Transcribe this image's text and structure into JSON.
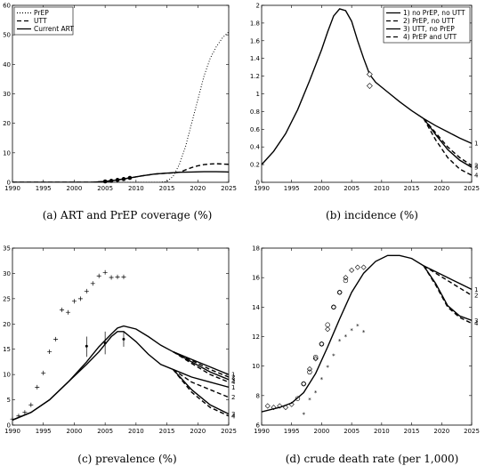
{
  "captions": {
    "a": "(a)  ART and PrEP coverage (%)",
    "b": "(b)  incidence (%)",
    "c": "(c)  prevalence (%)",
    "d": "(d)  crude death rate (per 1,000)"
  },
  "chart_data": [
    {
      "id": "a",
      "type": "line",
      "xlim": [
        1990,
        2025
      ],
      "ylim": [
        0,
        60
      ],
      "xticks": [
        1990,
        1995,
        2000,
        2005,
        2010,
        2015,
        2020,
        2025
      ],
      "yticks": [
        0,
        10,
        20,
        30,
        40,
        50,
        60
      ],
      "legend": {
        "position": "top-left",
        "entries": [
          "PrEP",
          "UTT",
          "Current ART"
        ]
      },
      "series": [
        {
          "name": "PrEP",
          "style": "dotted",
          "x": [
            1990,
            2014,
            2015,
            2016,
            2017,
            2018,
            2019,
            2020,
            2021,
            2022,
            2023,
            2024,
            2025
          ],
          "y": [
            0,
            0,
            0.3,
            2,
            6,
            12,
            20,
            28,
            36,
            42,
            46,
            49,
            51
          ]
        },
        {
          "name": "UTT",
          "style": "dashed",
          "x": [
            1990,
            2003,
            2005,
            2007,
            2009,
            2011,
            2013,
            2015,
            2016,
            2017,
            2018,
            2019,
            2020,
            2021,
            2022,
            2023,
            2024,
            2025
          ],
          "y": [
            0,
            0,
            0.3,
            0.8,
            1.5,
            2.2,
            2.8,
            3.1,
            3.2,
            3.4,
            4.2,
            5,
            5.6,
            6,
            6.2,
            6.3,
            6.2,
            6.1
          ]
        },
        {
          "name": "Current ART",
          "style": "solid",
          "x": [
            1990,
            2003,
            2005,
            2007,
            2009,
            2011,
            2013,
            2015,
            2017,
            2019,
            2021,
            2023,
            2025
          ],
          "y": [
            0,
            0,
            0.3,
            0.8,
            1.5,
            2.2,
            2.8,
            3.1,
            3.4,
            3.5,
            3.6,
            3.6,
            3.5
          ]
        }
      ],
      "observed": {
        "marker": "dot",
        "x": [
          2005,
          2006,
          2007,
          2008,
          2009
        ],
        "y": [
          0.3,
          0.5,
          0.8,
          1.1,
          1.5
        ]
      }
    },
    {
      "id": "b",
      "type": "line",
      "xlim": [
        1990,
        2025
      ],
      "ylim": [
        0,
        2
      ],
      "xticks": [
        1990,
        1995,
        2000,
        2005,
        2010,
        2015,
        2020,
        2025
      ],
      "yticks": [
        0,
        0.2,
        0.4,
        0.6,
        0.8,
        1,
        1.2,
        1.4,
        1.6,
        1.8,
        2
      ],
      "ytick_labels": [
        "0",
        "0.2",
        "0.4",
        "0.6",
        "0.8",
        "1",
        "1.2",
        "1.4",
        "1.6",
        "1.8",
        "2"
      ],
      "legend": {
        "position": "top-right",
        "entries": [
          "1) no PrEP, no UTT",
          "2) PrEP, no UTT",
          "3) UTT, no PrEP",
          "4) PrEP and UTT"
        ]
      },
      "base": {
        "x": [
          1990,
          1992,
          1994,
          1996,
          1998,
          2000,
          2001,
          2002,
          2003,
          2004,
          2005,
          2006,
          2007,
          2008,
          2009,
          2011,
          2013,
          2015,
          2017
        ],
        "y": [
          0.2,
          0.35,
          0.55,
          0.82,
          1.15,
          1.5,
          1.7,
          1.88,
          1.96,
          1.94,
          1.82,
          1.6,
          1.4,
          1.22,
          1.13,
          1.02,
          0.91,
          0.81,
          0.72
        ]
      },
      "series": [
        {
          "name": "1) no PrEP, no UTT",
          "style": "solid",
          "label": "1",
          "x": [
            2017,
            2019,
            2021,
            2023,
            2025
          ],
          "y": [
            0.72,
            0.64,
            0.57,
            0.5,
            0.44
          ]
        },
        {
          "name": "2) PrEP, no UTT",
          "style": "dashed",
          "label": "2",
          "x": [
            2017,
            2019,
            2021,
            2023,
            2025
          ],
          "y": [
            0.72,
            0.56,
            0.4,
            0.28,
            0.19
          ]
        },
        {
          "name": "3) UTT, no PrEP",
          "style": "solid",
          "label": "3",
          "x": [
            2017,
            2019,
            2021,
            2023,
            2025
          ],
          "y": [
            0.72,
            0.54,
            0.37,
            0.25,
            0.17
          ]
        },
        {
          "name": "4) PrEP and UTT",
          "style": "dashed",
          "label": "4",
          "x": [
            2017,
            2019,
            2021,
            2023,
            2025
          ],
          "y": [
            0.72,
            0.48,
            0.28,
            0.15,
            0.08
          ]
        }
      ],
      "observed": {
        "marker": "diamond",
        "x": [
          2008,
          2008
        ],
        "y": [
          1.22,
          1.09
        ]
      }
    },
    {
      "id": "c",
      "type": "line",
      "xlim": [
        1990,
        2025
      ],
      "ylim": [
        0,
        35
      ],
      "xticks": [
        1990,
        1995,
        2000,
        2005,
        2010,
        2015,
        2020,
        2025
      ],
      "yticks": [
        0,
        5,
        10,
        15,
        20,
        25,
        30,
        35
      ],
      "base_upper": {
        "x": [
          1990,
          1993,
          1996,
          1999,
          2002,
          2004,
          2006,
          2007,
          2008,
          2010,
          2012,
          2014,
          2016
        ],
        "y": [
          1,
          2.5,
          5,
          8.5,
          12.5,
          15.5,
          18,
          19.2,
          19.6,
          19,
          17.5,
          15.8,
          14.5
        ]
      },
      "base_lower": {
        "x": [
          1990,
          1993,
          1996,
          1999,
          2002,
          2004,
          2006,
          2007,
          2008,
          2010,
          2012,
          2014,
          2016
        ],
        "y": [
          1,
          2.5,
          5,
          8.5,
          12,
          14.5,
          17.5,
          18.5,
          18.5,
          16.5,
          14,
          12,
          11
        ]
      },
      "series": [
        {
          "name": "upper 1",
          "style": "solid",
          "label": "1",
          "x": [
            2016,
            2019,
            2022,
            2025
          ],
          "y": [
            14.5,
            13,
            11.5,
            10
          ]
        },
        {
          "name": "upper 2",
          "style": "dashed",
          "label": "2",
          "x": [
            2016,
            2019,
            2022,
            2025
          ],
          "y": [
            14.5,
            12.8,
            11,
            9.5
          ]
        },
        {
          "name": "upper 3",
          "style": "solid",
          "label": "3",
          "x": [
            2016,
            2019,
            2022,
            2025
          ],
          "y": [
            14.5,
            12.5,
            10.5,
            9
          ]
        },
        {
          "name": "upper 4",
          "style": "dashed",
          "label": "4",
          "x": [
            2016,
            2019,
            2022,
            2025
          ],
          "y": [
            14.5,
            12.2,
            10,
            8.5
          ]
        },
        {
          "name": "lower 1",
          "style": "solid",
          "label": "1",
          "x": [
            2016,
            2019,
            2022,
            2025
          ],
          "y": [
            11,
            9.5,
            8.5,
            7.5
          ]
        },
        {
          "name": "lower 2",
          "style": "dashed",
          "label": "2",
          "x": [
            2016,
            2019,
            2022,
            2025
          ],
          "y": [
            11,
            8.5,
            7,
            5.5
          ]
        },
        {
          "name": "lower 3",
          "style": "solid",
          "label": "3",
          "x": [
            2016,
            2019,
            2022,
            2025
          ],
          "y": [
            11,
            7,
            4,
            2.2
          ]
        },
        {
          "name": "lower 4",
          "style": "dashed",
          "label": "4",
          "x": [
            2016,
            2019,
            2022,
            2025
          ],
          "y": [
            11,
            6.5,
            3.5,
            1.8
          ]
        }
      ],
      "observed_plus": {
        "x": [
          1990,
          1991,
          1992,
          1993,
          1994,
          1995,
          1996,
          1997,
          1998,
          1999,
          2000,
          2001,
          2002,
          2003,
          2004,
          2005,
          2006,
          2007,
          2008
        ],
        "y": [
          1.2,
          1.8,
          2.5,
          4,
          7.5,
          10.3,
          14.5,
          17,
          22.8,
          22.3,
          24.5,
          25,
          26.5,
          28,
          29.5,
          30.2,
          29.2,
          29.3,
          29.3
        ]
      },
      "observed_errorbars": {
        "x": [
          2002,
          2005,
          2008
        ],
        "y": [
          15.6,
          16.2,
          17.0
        ],
        "lo": [
          13.5,
          14.0,
          15.5
        ],
        "hi": [
          17.5,
          18.5,
          18.5
        ]
      }
    },
    {
      "id": "d",
      "type": "line",
      "xlim": [
        1990,
        2025
      ],
      "ylim": [
        6,
        18
      ],
      "xticks": [
        1990,
        1995,
        2000,
        2005,
        2010,
        2015,
        2020,
        2025
      ],
      "yticks": [
        6,
        8,
        10,
        12,
        14,
        16,
        18
      ],
      "base": {
        "x": [
          1990,
          1993,
          1995,
          1997,
          1999,
          2001,
          2003,
          2005,
          2007,
          2009,
          2011,
          2013,
          2015,
          2017
        ],
        "y": [
          6.9,
          7.2,
          7.5,
          8.2,
          9.5,
          11.3,
          13.2,
          15,
          16.3,
          17.1,
          17.5,
          17.5,
          17.3,
          16.8
        ]
      },
      "series": [
        {
          "name": "1",
          "style": "solid",
          "label": "1",
          "x": [
            2017,
            2019,
            2021,
            2023,
            2025
          ],
          "y": [
            16.8,
            16.4,
            16,
            15.6,
            15.2
          ]
        },
        {
          "name": "2",
          "style": "dashed",
          "label": "2",
          "x": [
            2017,
            2019,
            2021,
            2023,
            2025
          ],
          "y": [
            16.8,
            16.3,
            15.8,
            15.3,
            14.8
          ]
        },
        {
          "name": "3",
          "style": "solid",
          "label": "3",
          "x": [
            2017,
            2019,
            2021,
            2023,
            2025
          ],
          "y": [
            16.8,
            15.6,
            14.1,
            13.4,
            13.1
          ]
        },
        {
          "name": "4",
          "style": "dashed",
          "label": "4",
          "x": [
            2017,
            2019,
            2021,
            2023,
            2025
          ],
          "y": [
            16.8,
            15.5,
            14,
            13.3,
            12.9
          ]
        }
      ],
      "observed_circle": {
        "x": [
          1996,
          1997,
          1998,
          1999,
          2000,
          2001,
          2002,
          2003,
          2004
        ],
        "y": [
          7.8,
          8.8,
          9.6,
          10.6,
          11.5,
          12.8,
          14,
          15,
          15.8
        ]
      },
      "observed_diamond": {
        "x": [
          1991,
          1992,
          1993,
          1994,
          1995,
          1997,
          1998,
          1999,
          2000,
          2001,
          2002,
          2003,
          2004,
          2005,
          2006,
          2007
        ],
        "y": [
          7.3,
          7.2,
          7.3,
          7.2,
          7.4,
          8.8,
          9.8,
          10.5,
          11.5,
          12.5,
          14,
          15,
          16,
          16.5,
          16.7,
          16.7
        ]
      },
      "observed_star": {
        "x": [
          1997,
          1998,
          1999,
          2000,
          2001,
          2002,
          2003,
          2004,
          2005,
          2006,
          2007
        ],
        "y": [
          6.8,
          7.8,
          8.3,
          9.2,
          10,
          10.8,
          11.8,
          12.1,
          12.5,
          12.8,
          12.4
        ]
      }
    }
  ]
}
